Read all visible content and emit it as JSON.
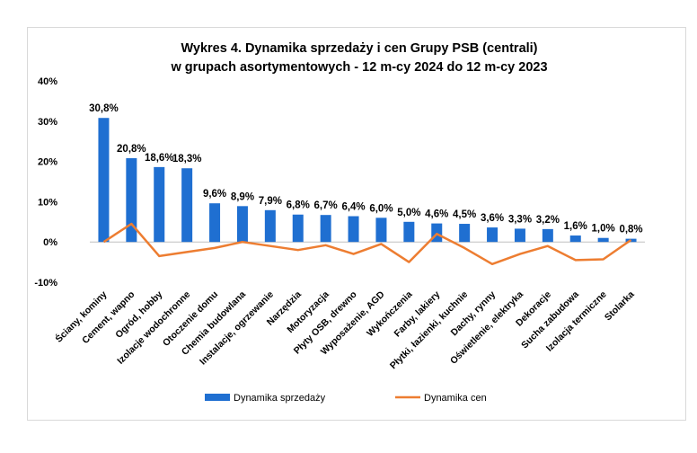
{
  "chart_data": {
    "type": "bar",
    "title": "Wykres 4. Dynamika sprzedaży i cen Grupy PSB (centrali)",
    "subtitle": "w grupach asortymentowych - 12 m-cy 2024 do 12 m-cy 2023",
    "categories": [
      "Ściany, kominy",
      "Cement, wapno",
      "Ogród, hobby",
      "Izolacje wodochronne",
      "Otoczenie domu",
      "Chemia budowlana",
      "Instalacje, ogrzewanie",
      "Narzędzia",
      "Motoryzacja",
      "Płyty OSB, drewno",
      "Wyposażenie, AGD",
      "Wykończenia",
      "Farby, lakiery",
      "Płytki, łazienki, kuchnie",
      "Dachy, rynny",
      "Oświetlenie, elektryka",
      "Dekoracje",
      "Sucha zabudowa",
      "Izolacja termiczne",
      "Stolarka"
    ],
    "series": [
      {
        "name": "Dynamika sprzedaży",
        "kind": "bar",
        "color": "#1f6fd1",
        "values": [
          30.8,
          20.8,
          18.6,
          18.3,
          9.6,
          8.9,
          7.9,
          6.8,
          6.7,
          6.4,
          6.0,
          5.0,
          4.6,
          4.5,
          3.6,
          3.3,
          3.2,
          1.6,
          1.0,
          0.8
        ],
        "labels": [
          "30,8%",
          "20,8%",
          "18,6%",
          "18,3%",
          "9,6%",
          "8,9%",
          "7,9%",
          "6,8%",
          "6,7%",
          "6,4%",
          "6,0%",
          "5,0%",
          "4,6%",
          "4,5%",
          "3,6%",
          "3,3%",
          "3,2%",
          "1,6%",
          "1,0%",
          "0,8%"
        ]
      },
      {
        "name": "Dynamika cen",
        "kind": "line",
        "color": "#ed7d31",
        "values": [
          0.0,
          4.5,
          -3.5,
          -2.5,
          -1.5,
          0.0,
          -1.0,
          -2.0,
          -0.8,
          -3.0,
          -0.5,
          -5.0,
          2.0,
          -1.5,
          -5.5,
          -3.0,
          -1.0,
          -4.5,
          -4.3,
          0.5
        ]
      }
    ],
    "ylim": [
      -10,
      40
    ],
    "yticks": [
      -10,
      0,
      10,
      20,
      30,
      40
    ],
    "yticklabels": [
      "-10%",
      "0%",
      "10%",
      "20%",
      "30%",
      "40%"
    ],
    "grid": false,
    "legend_position": "bottom"
  }
}
